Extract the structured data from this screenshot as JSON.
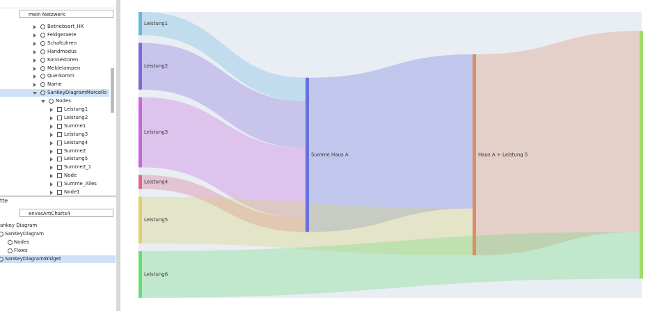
{
  "left_panel": {
    "network_select": "mein Netzwerk",
    "tree_items": [
      "Betriebsart_HK",
      "Feldgeraete",
      "Schaltuhren",
      "Handmodus",
      "Konnektoren",
      "Meldelampen",
      "Querkomm",
      "Name",
      "SanKeyDiagramMarcello",
      "Nodes",
      "Leistung1",
      "Leistung2",
      "Summe1",
      "Leistung3",
      "Leistung4",
      "Summe2",
      "Leistung5",
      "Summe2_1",
      "Node",
      "Summe_Alles",
      "Node1"
    ]
  },
  "lower_panel": {
    "title": "tte",
    "select": "envasAmCharts4",
    "tree_items": [
      "ankey Diagram",
      "SanKeyDiagram",
      "Nodes",
      "Flows",
      "SanKeyDiagramWidget"
    ]
  },
  "chart_data": {
    "type": "sankey",
    "nodes": [
      {
        "name": "Leistung1",
        "color": "#67b7dc"
      },
      {
        "name": "Leistung2",
        "color": "#8067dc"
      },
      {
        "name": "Leistung3",
        "color": "#c767dc"
      },
      {
        "name": "Leistung4",
        "color": "#dc6788"
      },
      {
        "name": "Leistung5",
        "color": "#dcd267"
      },
      {
        "name": "Leistung6",
        "color": "#67dc75"
      },
      {
        "name": "Summe Haus A",
        "color": "#6771dc"
      },
      {
        "name": "Haus A + Leistung 5",
        "color": "#dc8c67"
      },
      {
        "name": null,
        "color": "#a0dc67"
      }
    ],
    "links": [
      {
        "source": 0,
        "target": 6,
        "value": 10
      },
      {
        "source": 1,
        "target": 6,
        "value": 20
      },
      {
        "source": 2,
        "target": 6,
        "value": 30
      },
      {
        "source": 3,
        "target": 6,
        "value": 6
      },
      {
        "source": 6,
        "target": 7,
        "value": 66
      },
      {
        "source": 4,
        "target": 7,
        "value": 20
      },
      {
        "source": 7,
        "target": 8,
        "value": 86
      },
      {
        "source": 5,
        "target": 8,
        "value": 20
      }
    ]
  }
}
